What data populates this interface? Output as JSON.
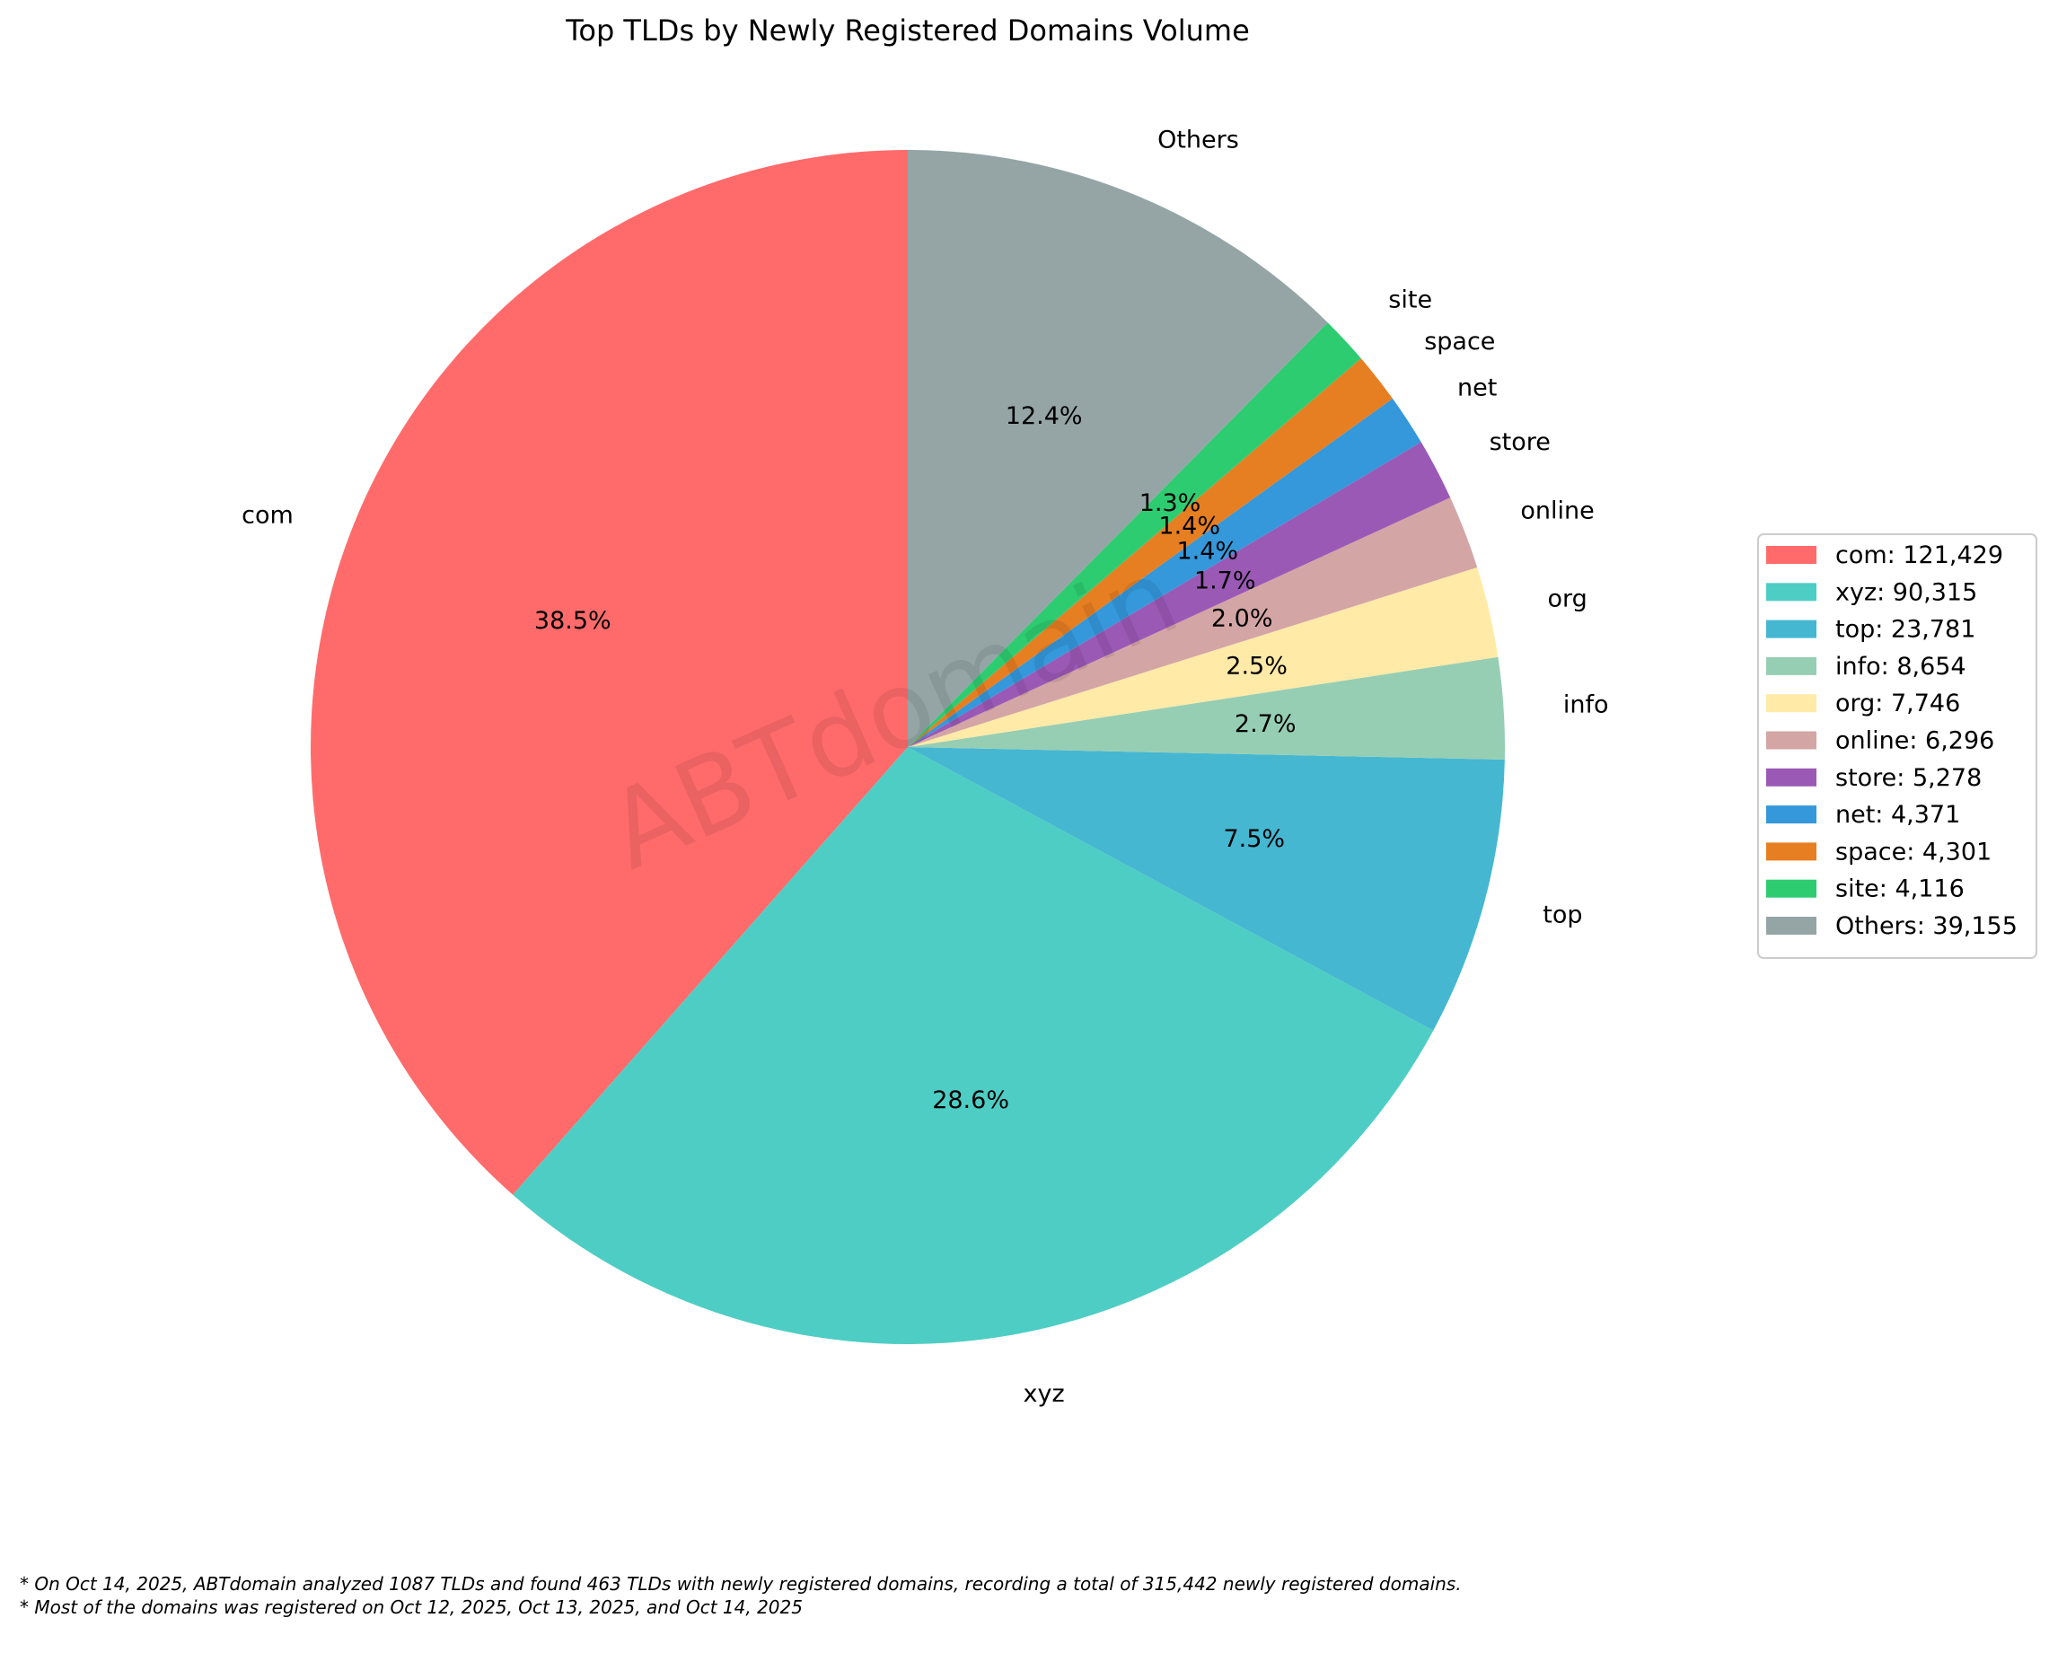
{
  "chart_data": {
    "type": "pie",
    "title": "Top TLDs by Newly Registered Domains Volume",
    "start_angle_deg": 90,
    "direction": "counterclockwise",
    "slices": [
      {
        "label": "com",
        "value": 121429,
        "pct_label": "38.5%",
        "legend": "com: 121,429",
        "color": "#ff6b6b"
      },
      {
        "label": "xyz",
        "value": 90315,
        "pct_label": "28.6%",
        "legend": "xyz: 90,315",
        "color": "#4ecdc4"
      },
      {
        "label": "top",
        "value": 23781,
        "pct_label": "7.5%",
        "legend": "top: 23,781",
        "color": "#45b7d1"
      },
      {
        "label": "info",
        "value": 8654,
        "pct_label": "2.7%",
        "legend": "info: 8,654",
        "color": "#96ceb4"
      },
      {
        "label": "org",
        "value": 7746,
        "pct_label": "2.5%",
        "legend": "org: 7,746",
        "color": "#ffeaa7"
      },
      {
        "label": "online",
        "value": 6296,
        "pct_label": "2.0%",
        "legend": "online: 6,296",
        "color": "#d4a5a5"
      },
      {
        "label": "store",
        "value": 5278,
        "pct_label": "1.7%",
        "legend": "store: 5,278",
        "color": "#9b59b6"
      },
      {
        "label": "net",
        "value": 4371,
        "pct_label": "1.4%",
        "legend": "net: 4,371",
        "color": "#3498db"
      },
      {
        "label": "space",
        "value": 4301,
        "pct_label": "1.4%",
        "legend": "space: 4,301",
        "color": "#e67e22"
      },
      {
        "label": "site",
        "value": 4116,
        "pct_label": "1.3%",
        "legend": "site: 4,116",
        "color": "#2ecc71"
      },
      {
        "label": "Others",
        "value": 39155,
        "pct_label": "12.4%",
        "legend": "Others: 39,155",
        "color": "#95a5a6"
      }
    ],
    "legend_position": "right"
  },
  "watermark": "ABTdomain",
  "footnotes": [
    "* On Oct 14, 2025, ABTdomain analyzed 1087 TLDs and found 463 TLDs with newly registered domains, recording a total of 315,442 newly registered domains.",
    "* Most of the domains was registered on Oct 12, 2025, Oct 13, 2025, and Oct 14, 2025"
  ]
}
